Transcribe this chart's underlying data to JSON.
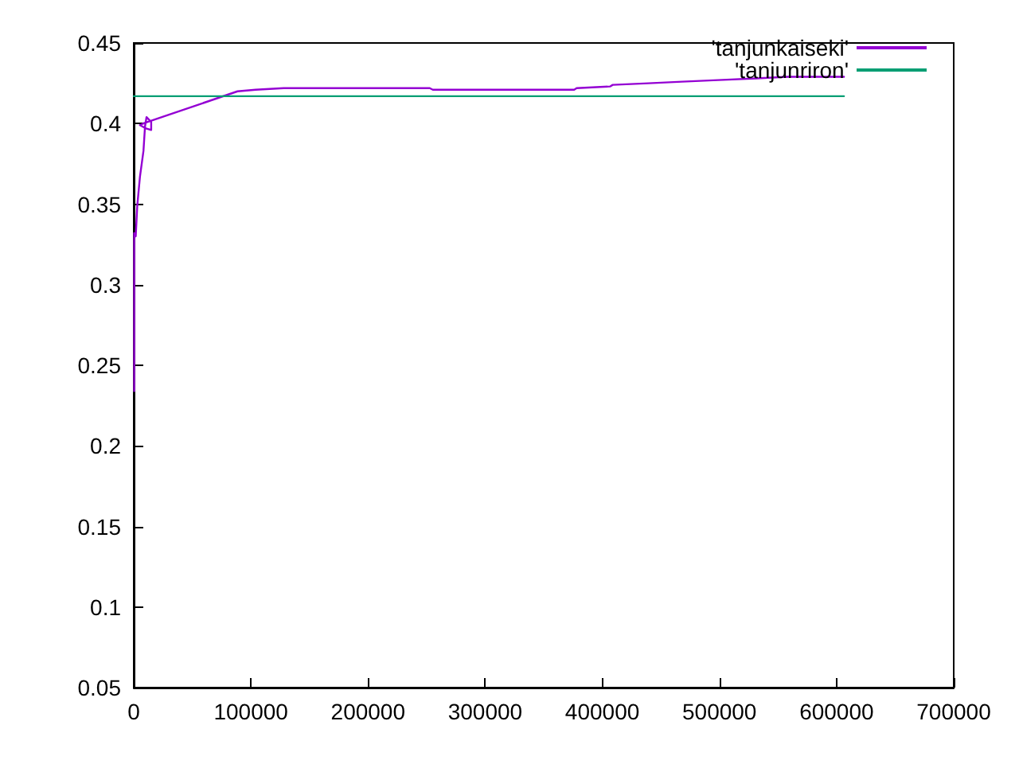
{
  "chart_data": {
    "type": "line",
    "xlim": [
      0,
      700000
    ],
    "ylim": [
      0.05,
      0.45
    ],
    "xticks": [
      0,
      100000,
      200000,
      300000,
      400000,
      500000,
      600000,
      700000
    ],
    "yticks": [
      0.05,
      0.1,
      0.15,
      0.2,
      0.25,
      0.3,
      0.35,
      0.4,
      0.45
    ],
    "grid": false,
    "legend": "top right",
    "marker": "none",
    "line_style": "solid",
    "series": [
      {
        "name": "'tanjunkaiseki'",
        "color": "#9400d3",
        "x": [
          400,
          400,
          1700,
          3000,
          5300,
          8300,
          9600,
          10900,
          14900,
          14900,
          10500,
          5300,
          8000,
          12000,
          20000,
          88600,
          104000,
          128000,
          252700,
          255300,
          376000,
          378100,
          406600,
          408900,
          439500,
          468100,
          498800,
          531700,
          558000,
          590900,
          606300
        ],
        "values": [
          0.234,
          0.332,
          0.33,
          0.349,
          0.367,
          0.383,
          0.398,
          0.404,
          0.401,
          0.396,
          0.397,
          0.399,
          0.4,
          0.401,
          0.403,
          0.42,
          0.421,
          0.422,
          0.422,
          0.421,
          0.421,
          0.422,
          0.423,
          0.424,
          0.425,
          0.426,
          0.427,
          0.428,
          0.429,
          0.429,
          0.429
        ]
      },
      {
        "name": "'tanjunriron'",
        "color": "#009e73",
        "x": [
          0,
          606300
        ],
        "values": [
          0.417,
          0.417
        ]
      }
    ]
  }
}
